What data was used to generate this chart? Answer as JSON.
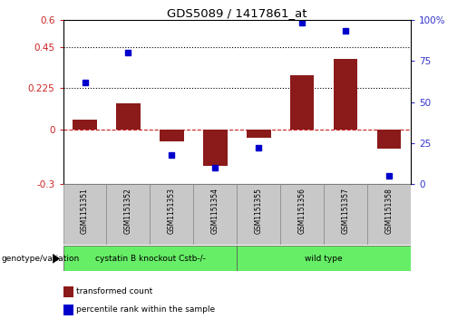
{
  "title": "GDS5089 / 1417861_at",
  "samples": [
    "GSM1151351",
    "GSM1151352",
    "GSM1151353",
    "GSM1151354",
    "GSM1151355",
    "GSM1151356",
    "GSM1151357",
    "GSM1151358"
  ],
  "transformed_count": [
    0.055,
    0.145,
    -0.065,
    -0.2,
    -0.045,
    0.295,
    0.385,
    -0.105
  ],
  "percentile_rank": [
    62,
    80,
    18,
    10,
    22,
    98,
    93,
    5
  ],
  "ylim_left": [
    -0.3,
    0.6
  ],
  "ylim_right": [
    0,
    100
  ],
  "yticks_left": [
    -0.3,
    0.0,
    0.225,
    0.45,
    0.6
  ],
  "yticks_right": [
    0,
    25,
    50,
    75,
    100
  ],
  "ytick_labels_left": [
    "-0.3",
    "0",
    "0.225",
    "0.45",
    "0.6"
  ],
  "ytick_labels_right": [
    "0",
    "25",
    "50",
    "75",
    "100%"
  ],
  "hlines": [
    0.45,
    0.225
  ],
  "zero_line": 0.0,
  "bar_color": "#8B1A1A",
  "dot_color": "#0000CD",
  "bar_width": 0.55,
  "group_divider": 4,
  "group1_label": "cystatin B knockout Cstb-/-",
  "group2_label": "wild type",
  "group_color": "#66EE66",
  "legend_entries": [
    "transformed count",
    "percentile rank within the sample"
  ],
  "legend_colors": [
    "#8B1A1A",
    "#0000CD"
  ],
  "left_label": "genotype/variation",
  "background_color": "#FFFFFF",
  "plot_bg": "#FFFFFF",
  "tick_area_bg": "#C8C8C8"
}
